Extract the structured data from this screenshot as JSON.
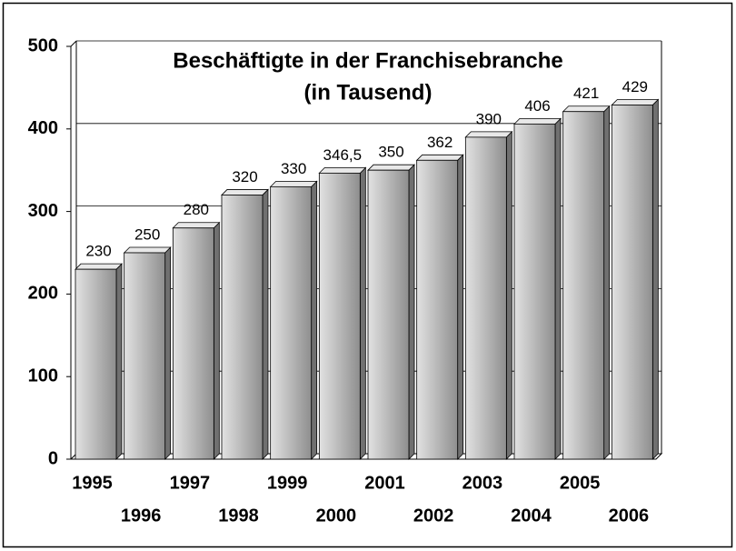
{
  "chart_data": {
    "type": "bar3d",
    "title": [
      "Beschäftigte in der Franchisebranche",
      "(in Tausend)"
    ],
    "categories": [
      "1995",
      "1996",
      "1997",
      "1998",
      "1999",
      "2000",
      "2001",
      "2002",
      "2003",
      "2004",
      "2005",
      "2006"
    ],
    "values": [
      230,
      250,
      280,
      320,
      330,
      346.5,
      350,
      362,
      390,
      406,
      421,
      429
    ],
    "value_labels": [
      "230",
      "250",
      "280",
      "320",
      "330",
      "346,5",
      "350",
      "362",
      "390",
      "406",
      "421",
      "429"
    ],
    "color": "#b4b4b4",
    "ylim": [
      0,
      500
    ],
    "yticks": [
      0,
      100,
      200,
      300,
      400,
      500
    ],
    "grid": true
  }
}
